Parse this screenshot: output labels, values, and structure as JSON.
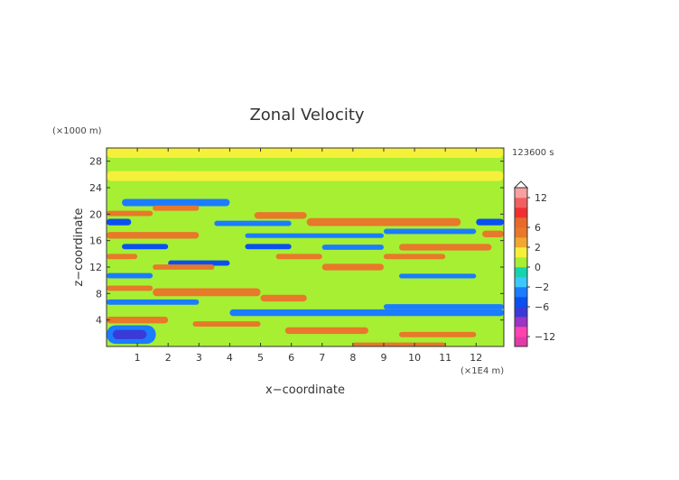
{
  "chart_data": {
    "type": "heatmap",
    "title": "Zonal Velocity",
    "xlabel": "x−coordinate",
    "ylabel": "z−coordinate",
    "x_scale_label": "(×1E4 m)",
    "y_scale_label": "(×1000 m)",
    "time_label": "123600 s",
    "xlim": [
      0,
      12.9
    ],
    "ylim": [
      0,
      30
    ],
    "x_ticks": [
      1,
      2,
      3,
      4,
      5,
      6,
      7,
      8,
      9,
      10,
      11,
      12
    ],
    "y_ticks": [
      4,
      8,
      12,
      16,
      20,
      24,
      28
    ],
    "colorbar": {
      "levels": [
        -14,
        -12,
        -10,
        -8,
        -6,
        -4,
        -2,
        -1,
        0,
        1,
        2,
        4,
        6,
        8,
        10,
        12,
        14
      ],
      "colors": [
        "#e23ba8",
        "#ff44b0",
        "#9b35c4",
        "#3a3ad8",
        "#0a50f0",
        "#1b7cff",
        "#3cc8ff",
        "#17d4b0",
        "#a6ef33",
        "#f5f03a",
        "#f0a830",
        "#e8782a",
        "#e86a2a",
        "#f03030",
        "#f06060",
        "#f8a0a0"
      ],
      "tick_labels": [
        "12",
        "6",
        "2",
        "0",
        "−2",
        "−6",
        "−12"
      ],
      "tick_values": [
        12,
        6,
        2,
        0,
        -2,
        -6,
        -12
      ]
    },
    "bands": [
      {
        "x": [
          0,
          12.9
        ],
        "z": [
          28.5,
          30
        ],
        "value": 1.5
      },
      {
        "x": [
          0,
          12.9
        ],
        "z": [
          25,
          26.5
        ],
        "value": 1.5
      },
      {
        "x": [
          2,
          11
        ],
        "z": [
          26.5,
          28
        ],
        "value": 0.4
      },
      {
        "x": [
          5,
          9
        ],
        "z": [
          23,
          24.5
        ],
        "value": 0.4
      },
      {
        "x": [
          0.5,
          4
        ],
        "z": [
          21.2,
          22.3
        ],
        "value": -2.5
      },
      {
        "x": [
          1.5,
          3
        ],
        "z": [
          20.5,
          21.3
        ],
        "value": 4.5
      },
      {
        "x": [
          0,
          1.5
        ],
        "z": [
          19.7,
          20.5
        ],
        "value": 4.5
      },
      {
        "x": [
          0,
          0.8
        ],
        "z": [
          18.3,
          19.3
        ],
        "value": -4.5
      },
      {
        "x": [
          12,
          12.9
        ],
        "z": [
          18.3,
          19.3
        ],
        "value": -4.5
      },
      {
        "x": [
          4.8,
          6.5
        ],
        "z": [
          19.3,
          20.3
        ],
        "value": 4.5
      },
      {
        "x": [
          6.5,
          11.5
        ],
        "z": [
          18.2,
          19.4
        ],
        "value": 4.5
      },
      {
        "x": [
          3.5,
          6
        ],
        "z": [
          18.2,
          19
        ],
        "value": -2.5
      },
      {
        "x": [
          0,
          3
        ],
        "z": [
          16.3,
          17.3
        ],
        "value": 4.5
      },
      {
        "x": [
          12.2,
          12.9
        ],
        "z": [
          16.5,
          17.5
        ],
        "value": 4.5
      },
      {
        "x": [
          4.5,
          9
        ],
        "z": [
          16.4,
          17.1
        ],
        "value": -2.5
      },
      {
        "x": [
          9,
          12
        ],
        "z": [
          17,
          17.8
        ],
        "value": -2.5
      },
      {
        "x": [
          0.5,
          2
        ],
        "z": [
          14.7,
          15.5
        ],
        "value": -4.5
      },
      {
        "x": [
          4.5,
          6
        ],
        "z": [
          14.7,
          15.5
        ],
        "value": -4.5
      },
      {
        "x": [
          7,
          9
        ],
        "z": [
          14.6,
          15.4
        ],
        "value": -2.5
      },
      {
        "x": [
          9.5,
          12.5
        ],
        "z": [
          14.5,
          15.5
        ],
        "value": 4.5
      },
      {
        "x": [
          0,
          1
        ],
        "z": [
          13.2,
          14
        ],
        "value": 4.5
      },
      {
        "x": [
          5.5,
          7
        ],
        "z": [
          13.2,
          14
        ],
        "value": 4.5
      },
      {
        "x": [
          9,
          11
        ],
        "z": [
          13.2,
          14
        ],
        "value": 4.5
      },
      {
        "x": [
          2,
          4
        ],
        "z": [
          12.2,
          13
        ],
        "value": -4.5
      },
      {
        "x": [
          7,
          9
        ],
        "z": [
          11.5,
          12.5
        ],
        "value": 4.5
      },
      {
        "x": [
          1.5,
          3.5
        ],
        "z": [
          11.6,
          12.4
        ],
        "value": 4.5
      },
      {
        "x": [
          0,
          1.5
        ],
        "z": [
          10.3,
          11.1
        ],
        "value": -2.5
      },
      {
        "x": [
          9.5,
          12
        ],
        "z": [
          10.3,
          11
        ],
        "value": -2.5
      },
      {
        "x": [
          0,
          1.5
        ],
        "z": [
          8.4,
          9.2
        ],
        "value": 4.5
      },
      {
        "x": [
          1.5,
          5
        ],
        "z": [
          7.6,
          8.8
        ],
        "value": 4.5
      },
      {
        "x": [
          5,
          6.5
        ],
        "z": [
          6.8,
          7.8
        ],
        "value": 4.5
      },
      {
        "x": [
          0,
          3
        ],
        "z": [
          6.3,
          7.1
        ],
        "value": -2.5
      },
      {
        "x": [
          4,
          12.9
        ],
        "z": [
          4.6,
          5.6
        ],
        "value": -2.5
      },
      {
        "x": [
          9,
          12.9
        ],
        "z": [
          5.6,
          6.4
        ],
        "value": -2.5
      },
      {
        "x": [
          0,
          2
        ],
        "z": [
          3.5,
          4.5
        ],
        "value": 4.5
      },
      {
        "x": [
          2.8,
          5
        ],
        "z": [
          3,
          3.8
        ],
        "value": 4.5
      },
      {
        "x": [
          5.8,
          8.5
        ],
        "z": [
          1.9,
          2.9
        ],
        "value": 4.5
      },
      {
        "x": [
          9.5,
          12
        ],
        "z": [
          1.4,
          2.2
        ],
        "value": 4.5
      },
      {
        "x": [
          0,
          1.6
        ],
        "z": [
          0.4,
          3.2
        ],
        "value": -2.5
      },
      {
        "x": [
          0.2,
          1.3
        ],
        "z": [
          1.1,
          2.5
        ],
        "value": -6.5
      },
      {
        "x": [
          8,
          11
        ],
        "z": [
          0,
          0.6
        ],
        "value": 4.5
      }
    ]
  }
}
